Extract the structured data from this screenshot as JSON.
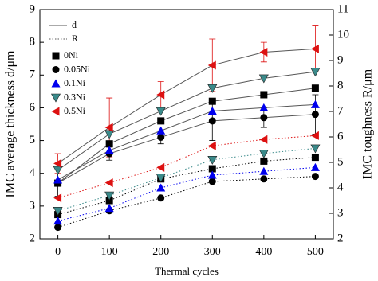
{
  "chart_data": {
    "type": "line",
    "x_label": "Thermal cycles",
    "y_label": "IMC average thickness d/μm",
    "y2_label": "IMC toughness R/μm",
    "line_legend": [
      "d",
      "R"
    ],
    "x": [
      0,
      100,
      200,
      300,
      400,
      500
    ],
    "xlim": [
      -35,
      535
    ],
    "xticks": [
      0,
      100,
      200,
      300,
      400,
      500
    ],
    "ylim": [
      2,
      9
    ],
    "yticks": [
      2,
      3,
      4,
      5,
      6,
      7,
      8,
      9
    ],
    "y2lim": [
      2,
      11
    ],
    "y2ticks": [
      2,
      3,
      4,
      5,
      6,
      7,
      8,
      9,
      10,
      11
    ],
    "series": [
      {
        "name": "0Ni",
        "color": "#000000",
        "marker": "square",
        "values": [
          3.7,
          4.9,
          5.6,
          6.2,
          6.4,
          6.6
        ],
        "r_values": [
          2.95,
          3.5,
          4.35,
          4.75,
          5.05,
          5.2
        ]
      },
      {
        "name": "0.05Ni",
        "color": "#000000",
        "marker": "circle",
        "values": [
          3.7,
          4.6,
          5.1,
          5.6,
          5.7,
          5.8
        ],
        "errors": [
          0.4,
          0.2,
          0.2,
          0.6,
          0.3,
          0.6
        ],
        "r_values": [
          2.45,
          3.1,
          3.6,
          4.25,
          4.35,
          4.45
        ]
      },
      {
        "name": "0.1Ni",
        "color": "#0000ee",
        "marker": "triangle-up",
        "values": [
          3.8,
          4.7,
          5.3,
          5.9,
          6.0,
          6.1
        ],
        "r_values": [
          2.7,
          3.2,
          4.0,
          4.5,
          4.65,
          4.8
        ]
      },
      {
        "name": "0.3Ni",
        "color": "#3a8a8a",
        "marker": "triangle-down",
        "values": [
          4.1,
          5.2,
          5.9,
          6.6,
          6.9,
          7.1
        ],
        "r_values": [
          3.1,
          3.7,
          4.4,
          5.1,
          5.35,
          5.55
        ]
      },
      {
        "name": "0.5Ni",
        "color": "#dd1111",
        "marker": "triangle-left",
        "values": [
          4.3,
          5.4,
          6.4,
          7.3,
          7.7,
          7.8
        ],
        "errors": [
          0.3,
          0.9,
          0.4,
          0.8,
          0.3,
          0.7
        ],
        "r_values": [
          3.6,
          4.2,
          4.8,
          5.65,
          5.9,
          6.05
        ]
      }
    ]
  }
}
